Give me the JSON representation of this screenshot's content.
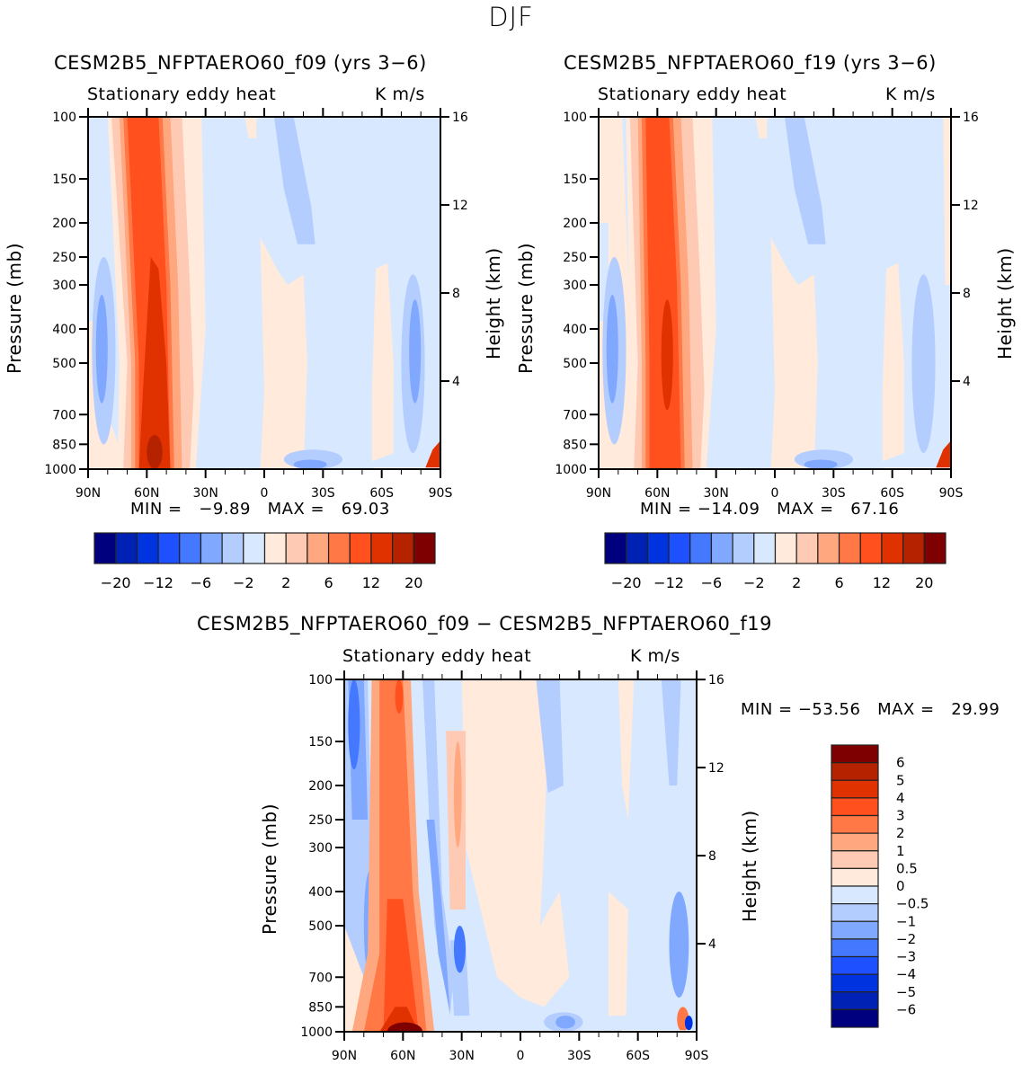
{
  "figure": {
    "title": "DJF"
  },
  "colors": {
    "abs_levels": [
      "#00007f",
      "#0022b4",
      "#0033e0",
      "#1e50ff",
      "#4479ff",
      "#80a8ff",
      "#b4cdff",
      "#d8e9ff",
      "#ffeadb",
      "#ffcab4",
      "#ffa880",
      "#ff7846",
      "#ff501e",
      "#e03200",
      "#b42200",
      "#7f0000"
    ]
  },
  "chart_data": [
    {
      "type": "heatmap",
      "id": "panel_f09",
      "title": "CESM2B5_NFPTAERO60_f09 (yrs 3−6)",
      "left_label": "Stationary eddy heat",
      "right_label": "K m/s",
      "xlabel": "",
      "ylabel": "Pressure (mb)",
      "y2label": "Height (km)",
      "x_ticks": [
        "90N",
        "60N",
        "30N",
        "0",
        "30S",
        "60S",
        "90S"
      ],
      "x_range": [
        90,
        -90
      ],
      "y_ticks": [
        "100",
        "150",
        "200",
        "250",
        "300",
        "400",
        "500",
        "700",
        "850",
        "1000"
      ],
      "y_range_mb": [
        1000,
        100
      ],
      "y2_ticks": [
        "16",
        "12",
        "8",
        "4"
      ],
      "min_max_text": "MIN =   −9.89   MAX =   69.03",
      "min": -9.89,
      "max": 69.03,
      "colorbar": {
        "orientation": "horizontal",
        "levels": [
          -20,
          -16,
          -12,
          -8,
          -6,
          -4,
          -2,
          0,
          2,
          4,
          6,
          8,
          12,
          16,
          20
        ],
        "tick_labels": [
          "−20",
          "−12",
          "−6",
          "−2",
          "2",
          "6",
          "12",
          "20"
        ]
      },
      "features": [
        {
          "desc": "main positive band",
          "lat_center": 54,
          "value_range": [
            12,
            69
          ]
        },
        {
          "desc": "negative cell",
          "lat_center": 82,
          "p_range": [
            300,
            700
          ],
          "value_range": [
            -6,
            -2
          ]
        },
        {
          "desc": "negative cell",
          "lat_center": -77,
          "p_range": [
            300,
            850
          ],
          "value_range": [
            -6,
            -2
          ]
        },
        {
          "desc": "negative upper cell",
          "lat_center": -20,
          "p_range": [
            100,
            200
          ],
          "value": -2
        }
      ]
    },
    {
      "type": "heatmap",
      "id": "panel_f19",
      "title": "CESM2B5_NFPTAERO60_f19 (yrs 3−6)",
      "left_label": "Stationary eddy heat",
      "right_label": "K m/s",
      "ylabel": "Pressure (mb)",
      "y2label": "Height (km)",
      "x_ticks": [
        "90N",
        "60N",
        "30N",
        "0",
        "30S",
        "60S",
        "90S"
      ],
      "x_range": [
        90,
        -90
      ],
      "y_ticks": [
        "100",
        "150",
        "200",
        "250",
        "300",
        "400",
        "500",
        "700",
        "850",
        "1000"
      ],
      "y_range_mb": [
        1000,
        100
      ],
      "y2_ticks": [
        "16",
        "12",
        "8",
        "4"
      ],
      "min_max_text": "MIN = −14.09   MAX =   67.16",
      "min": -14.09,
      "max": 67.16,
      "colorbar": {
        "orientation": "horizontal",
        "levels": [
          -20,
          -16,
          -12,
          -8,
          -6,
          -4,
          -2,
          0,
          2,
          4,
          6,
          8,
          12,
          16,
          20
        ],
        "tick_labels": [
          "−20",
          "−12",
          "−6",
          "−2",
          "2",
          "6",
          "12",
          "20"
        ]
      }
    },
    {
      "type": "heatmap",
      "id": "panel_diff",
      "title": "CESM2B5_NFPTAERO60_f09 − CESM2B5_NFPTAERO60_f19",
      "left_label": "Stationary eddy heat",
      "right_label": "K m/s",
      "ylabel": "Pressure (mb)",
      "y2label": "Height (km)",
      "x_ticks": [
        "90N",
        "60N",
        "30N",
        "0",
        "30S",
        "60S",
        "90S"
      ],
      "x_range": [
        90,
        -90
      ],
      "y_ticks": [
        "100",
        "150",
        "200",
        "250",
        "300",
        "400",
        "500",
        "700",
        "850",
        "1000"
      ],
      "y_range_mb": [
        1000,
        100
      ],
      "y2_ticks": [
        "16",
        "12",
        "8",
        "4"
      ],
      "min_max_text": "MIN = −53.56   MAX =   29.99",
      "min": -53.56,
      "max": 29.99,
      "colorbar": {
        "orientation": "vertical",
        "levels": [
          -6,
          -5,
          -4,
          -3,
          -2,
          -1,
          -0.5,
          0,
          0.5,
          1,
          2,
          3,
          4,
          5,
          6
        ],
        "tick_labels": [
          "6",
          "5",
          "4",
          "3",
          "2",
          "1",
          "0.5",
          "0",
          "−0.5",
          "−1",
          "−2",
          "−3",
          "−4",
          "−5",
          "−6"
        ]
      }
    }
  ]
}
